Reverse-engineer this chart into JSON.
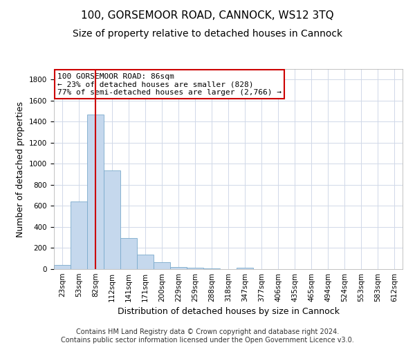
{
  "title": "100, GORSEMOOR ROAD, CANNOCK, WS12 3TQ",
  "subtitle": "Size of property relative to detached houses in Cannock",
  "xlabel": "Distribution of detached houses by size in Cannock",
  "ylabel": "Number of detached properties",
  "footer_line1": "Contains HM Land Registry data © Crown copyright and database right 2024.",
  "footer_line2": "Contains public sector information licensed under the Open Government Licence v3.0.",
  "categories": [
    "23sqm",
    "53sqm",
    "82sqm",
    "112sqm",
    "141sqm",
    "171sqm",
    "200sqm",
    "229sqm",
    "259sqm",
    "288sqm",
    "318sqm",
    "347sqm",
    "377sqm",
    "406sqm",
    "435sqm",
    "465sqm",
    "494sqm",
    "524sqm",
    "553sqm",
    "583sqm",
    "612sqm"
  ],
  "values": [
    40,
    645,
    1470,
    935,
    295,
    135,
    65,
    22,
    15,
    8,
    0,
    13,
    0,
    0,
    0,
    0,
    0,
    0,
    0,
    0,
    0
  ],
  "bar_color": "#c5d8ed",
  "bar_edge_color": "#7aaacc",
  "property_bin_index": 2,
  "annotation_text_line1": "100 GORSEMOOR ROAD: 86sqm",
  "annotation_text_line2": "← 23% of detached houses are smaller (828)",
  "annotation_text_line3": "77% of semi-detached houses are larger (2,766) →",
  "vline_color": "#cc0000",
  "annotation_box_edge_color": "#cc0000",
  "ylim": [
    0,
    1900
  ],
  "yticks": [
    0,
    200,
    400,
    600,
    800,
    1000,
    1200,
    1400,
    1600,
    1800
  ],
  "background_color": "#ffffff",
  "plot_background": "#ffffff",
  "grid_color": "#d0d8e8",
  "title_fontsize": 11,
  "subtitle_fontsize": 10,
  "tick_fontsize": 7.5,
  "ylabel_fontsize": 9,
  "xlabel_fontsize": 9,
  "footer_fontsize": 7,
  "annotation_fontsize": 8
}
